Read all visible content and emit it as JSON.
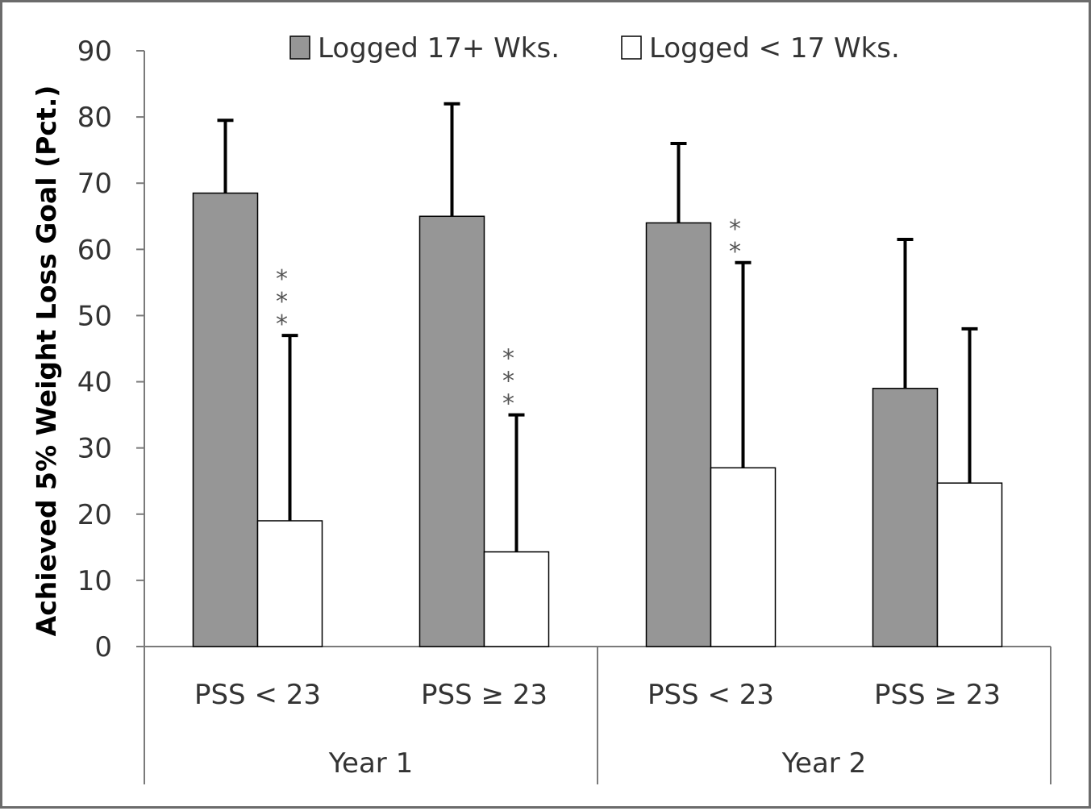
{
  "chart_data": {
    "type": "bar",
    "ylabel": "Achieved 5% Weight Loss Goal (Pct.)",
    "xlabel": "",
    "ylim": [
      0,
      90
    ],
    "yticks": [
      0,
      10,
      20,
      30,
      40,
      50,
      60,
      70,
      80,
      90
    ],
    "grid": false,
    "legend_position": "top-center",
    "groups": [
      {
        "label": "Year 1",
        "categories": [
          "PSS < 23",
          "PSS ≥ 23"
        ]
      },
      {
        "label": "Year 2",
        "categories": [
          "PSS < 23",
          "PSS ≥ 23"
        ]
      }
    ],
    "categories": [
      "PSS < 23",
      "PSS ≥ 23",
      "PSS < 23",
      "PSS ≥ 23"
    ],
    "series": [
      {
        "name": "Logged 17+ Wks.",
        "color": "#969696",
        "values": [
          68.5,
          65,
          64,
          39
        ],
        "error_upper": [
          79.5,
          82,
          76,
          61.5
        ]
      },
      {
        "name": "Logged < 17 Wks.",
        "color": "#ffffff",
        "values": [
          19,
          14.3,
          27,
          24.7
        ],
        "error_upper": [
          47,
          35,
          58,
          48
        ]
      }
    ],
    "annotations": [
      {
        "category_index": 0,
        "series_index": 1,
        "text": "***"
      },
      {
        "category_index": 1,
        "series_index": 1,
        "text": "***"
      },
      {
        "category_index": 2,
        "series_index": 1,
        "text": "**"
      },
      {
        "category_index": 3,
        "series_index": 1,
        "text": ""
      }
    ]
  }
}
